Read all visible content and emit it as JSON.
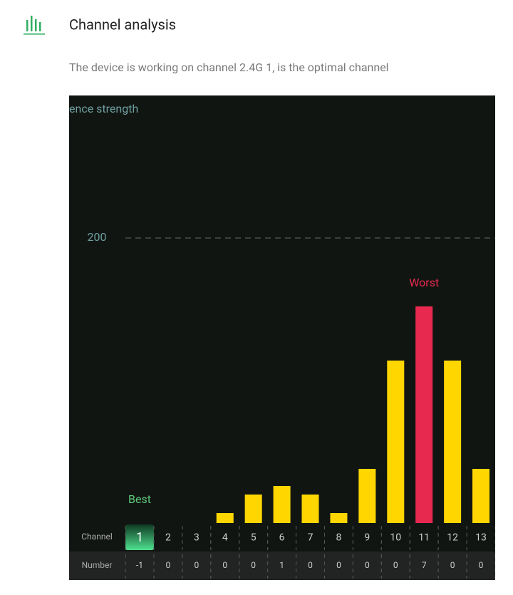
{
  "header": {
    "title": "Channel analysis",
    "subtitle": "The device is working on channel 2.4G 1, is the optimal channel"
  },
  "chart_data": {
    "type": "bar",
    "y_label": "ence strength",
    "categories": [
      "1",
      "2",
      "3",
      "4",
      "5",
      "6",
      "7",
      "8",
      "9",
      "10",
      "11",
      "12",
      "13"
    ],
    "values": [
      0,
      0,
      0,
      7,
      20,
      26,
      20,
      7,
      38,
      114,
      152,
      114,
      38
    ],
    "color": "#ffd600",
    "ylim": [
      0,
      300
    ],
    "yticks": [
      200
    ],
    "grid": true,
    "row_labels": [
      "Channel",
      "Number"
    ],
    "numbers": [
      -1,
      0,
      0,
      0,
      0,
      1,
      0,
      0,
      0,
      0,
      7,
      0,
      0
    ],
    "annotations": [
      {
        "text": "Best",
        "category": "1",
        "color": "#5ec97a"
      },
      {
        "text": "Worst",
        "category": "11",
        "color": "#e8294f"
      }
    ]
  }
}
